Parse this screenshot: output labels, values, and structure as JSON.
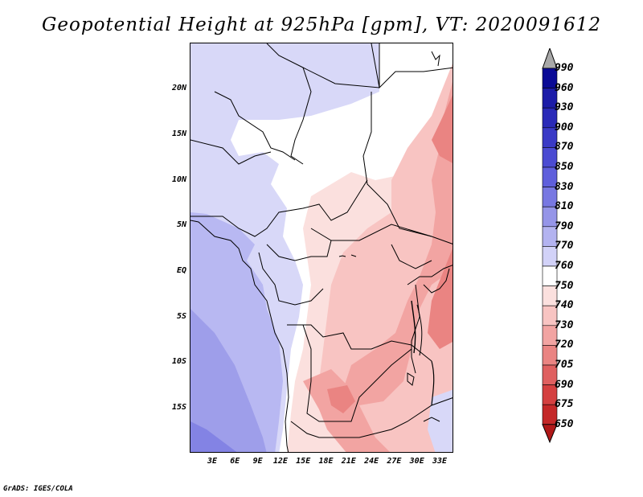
{
  "title": "Geopotential Height at 925hPa [gpm], VT: 2020091612",
  "credit": "GrADS: IGES/COLA",
  "y_ticks": [
    "20N",
    "15N",
    "10N",
    "5N",
    "EQ",
    "5S",
    "10S",
    "15S"
  ],
  "x_ticks": [
    "3E",
    "6E",
    "9E",
    "12E",
    "15E",
    "18E",
    "21E",
    "24E",
    "27E",
    "30E",
    "33E"
  ],
  "legend": {
    "levels": [
      "990",
      "960",
      "930",
      "900",
      "870",
      "850",
      "830",
      "810",
      "790",
      "770",
      "760",
      "750",
      "740",
      "730",
      "720",
      "705",
      "690",
      "675",
      "650"
    ],
    "colors": [
      "#0a0a96",
      "#1c1ca8",
      "#2a2ab8",
      "#3a3ac6",
      "#4b4bd2",
      "#5f5fdc",
      "#7878e2",
      "#9595e8",
      "#b3b3f0",
      "#d2d2f8",
      "#ffffff",
      "#fbe0de",
      "#f8c4c2",
      "#f2a4a2",
      "#ea8482",
      "#df6060",
      "#d44040",
      "#c42828",
      "#a81414"
    ],
    "over_color": "#a8a8a8",
    "under_color": "#b01818"
  }
}
